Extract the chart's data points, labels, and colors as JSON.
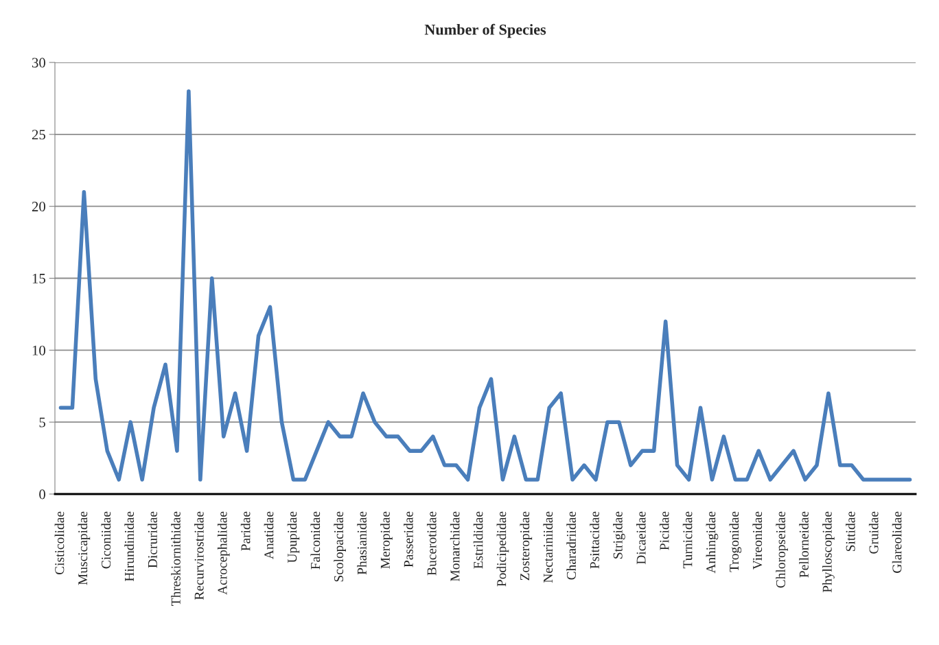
{
  "chart_data": {
    "type": "line",
    "title": "Number of Species",
    "categories": [
      "Cisticolidae",
      null,
      "Muscicapidae",
      null,
      "Ciconiidae",
      null,
      "Hirundinidae",
      null,
      "Dicruridae",
      null,
      "Threskiornithidae",
      null,
      "Recurvirostridae",
      null,
      "Acrocephalidae",
      null,
      "Paridae",
      null,
      "Anatidae",
      null,
      "Upupidae",
      null,
      "Falconidae",
      null,
      "Scolopacidae",
      null,
      "Phasianidae",
      null,
      "Meropidae",
      null,
      "Passeridae",
      null,
      "Bucerotidae",
      null,
      "Monarchidae",
      null,
      "Estrildidae",
      null,
      "Podicipedidae",
      null,
      "Zosteropidae",
      null,
      "Nectariniidae",
      null,
      "Charadriidae",
      null,
      "Psittacidae",
      null,
      "Strigidae",
      null,
      "Dicaeidae",
      null,
      "Picidae",
      null,
      "Turnicidae",
      null,
      "Anhingidae",
      null,
      "Trogonidae",
      null,
      "Vireonidae",
      null,
      "Chloropseidae",
      null,
      "Pellorneidae",
      null,
      "Phylloscopidae",
      null,
      "Sittidae",
      null,
      "Gruidae",
      null,
      "Glareolidae",
      null
    ],
    "series": [
      {
        "color": "#4a7ebb",
        "values": [
          6,
          6,
          21,
          8,
          3,
          1,
          5,
          1,
          6,
          9,
          3,
          28,
          1,
          15,
          4,
          7,
          3,
          11,
          13,
          5,
          1,
          1,
          3,
          5,
          4,
          4,
          7,
          5,
          4,
          4,
          3,
          3,
          4,
          2,
          2,
          1,
          6,
          8,
          1,
          4,
          1,
          1,
          6,
          7,
          1,
          2,
          1,
          5,
          5,
          2,
          3,
          3,
          12,
          2,
          1,
          6,
          1,
          4,
          1,
          1,
          3,
          1,
          2,
          3,
          1,
          2,
          7,
          2,
          2,
          1,
          1,
          1,
          1,
          1
        ]
      }
    ],
    "ylim": [
      0,
      30
    ],
    "yticks": [
      0,
      5,
      10,
      15,
      20,
      25,
      30
    ],
    "grid": "y",
    "marker": "none",
    "line_style": "solid"
  }
}
